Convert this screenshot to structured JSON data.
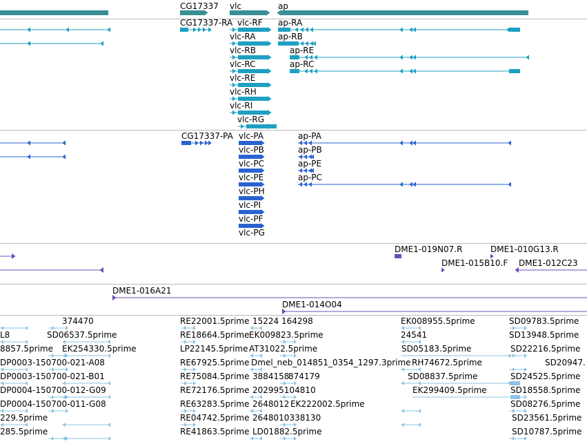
{
  "colors": {
    "gene": "#3a8f95",
    "mrna": "#1ea0c2",
    "protein": "#2a63d0",
    "bac": "#6e4bb8",
    "est": "#8ec3e2",
    "separator": "#b8b8b8"
  },
  "tracks": {
    "genes": {
      "labels": [
        "CG17337",
        "vlc",
        "ap"
      ]
    },
    "transcripts": {
      "labels": [
        "CG17337-RA",
        "vlc-RF",
        "vlc-RA",
        "vlc-RB",
        "vlc-RC",
        "vlc-RE",
        "vlc-RH",
        "vlc-RI",
        "vlc-RG",
        "ap-RA",
        "ap-RB",
        "ap-RE",
        "ap-RC"
      ]
    },
    "proteins": {
      "labels": [
        "CG17337-PA",
        "vlc-PA",
        "vlc-PB",
        "vlc-PC",
        "vlc-PE",
        "vlc-PH",
        "vlc-PI",
        "vlc-PF",
        "vlc-PG",
        "ap-PA",
        "ap-PB",
        "ap-PE",
        "ap-PC"
      ]
    },
    "bac_ends": {
      "labels": [
        "DME1-019N07.R",
        "DME1-010G13.R",
        "DME1-015B10.F",
        "DME1-012C23"
      ]
    },
    "bacs": {
      "labels": [
        "DME1-016A21",
        "DME1-014O04"
      ]
    },
    "ests": {
      "labels": [
        "374470",
        "RE22001.5prime",
        "15224",
        "164298",
        "EK008955.5prime",
        "SD09783.5prime",
        "L8",
        "SD06537.5prime",
        "RE18664.5prime",
        "EK009823.5prime",
        "24541",
        "SD13948.5prime",
        "8857.5prime",
        "EK254330.5prime",
        "LP22145.5prime",
        "AT31022.5prime",
        "SD05183.5prime",
        "SD22216.5prime",
        "DP0003-150700-021-A08",
        "RE67925.5prime",
        "Dmel_neb_014851_0354_1297.3prime",
        "RH74672.5prime",
        "SD20947.",
        "DP0003-150700-021-B01",
        "RE75084.5prime",
        "3884158",
        "874179",
        "SD08837.5prime",
        "SD24525.5prime",
        "DP0004-150700-012-G09",
        "RE72176.5prime",
        "202995104810",
        "EK299409.5prime",
        "SD18558.5prime",
        "DP0004-150700-011-G08",
        "RE63283.5prime",
        "2648012",
        "EK222002.5prime",
        "SD08276.5prime",
        "229.5prime",
        "RE04742.5prime",
        "2648010338130",
        "SD23561.5prime",
        "285.5prime",
        "RE41863.5prime",
        "LD01882.5prime",
        "SD10787.5prime"
      ]
    }
  }
}
